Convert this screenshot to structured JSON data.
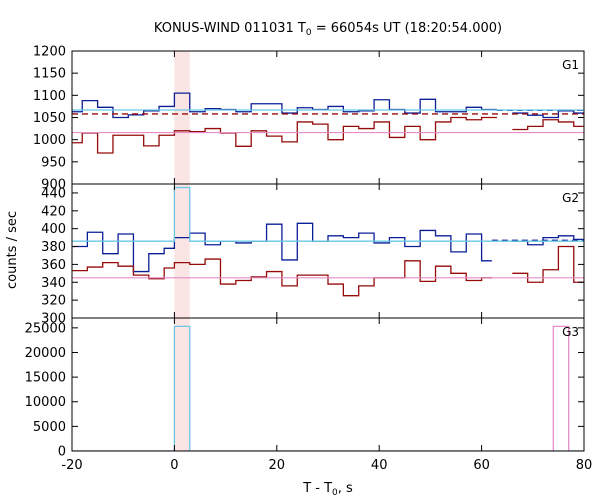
{
  "chart_data": {
    "type": "line",
    "title_prefix": "KONUS-WIND 011031 T",
    "title_sub": "0",
    "title_suffix": " = 66054s UT (18:20:54.000)",
    "xlabel_prefix": "T - T",
    "xlabel_sub": "0",
    "xlabel_suffix": ", s",
    "ylabel": "counts / sec",
    "xlim": [
      -20,
      80
    ],
    "xticks": [
      -20,
      0,
      20,
      40,
      60,
      80
    ],
    "highlight_interval": [
      0,
      3
    ],
    "colors": {
      "dark_blue": "#0a1e96",
      "dark_red": "#960a0a",
      "light_blue": "#6ac8e6",
      "pink": "#e68cc8",
      "highlight": "#fbe4e4"
    },
    "panels": [
      {
        "label": "G1",
        "ylim": [
          900,
          1200
        ],
        "yticks": [
          900,
          950,
          1000,
          1050,
          1100,
          1150,
          1200
        ],
        "series": [
          {
            "color": "dark_blue",
            "kind": "step",
            "x": [
              -20,
              -18,
              -15,
              -12,
              -9,
              -6,
              -3,
              0,
              3,
              6,
              9,
              12,
              15,
              18,
              21,
              24,
              27,
              30,
              33,
              36,
              39,
              42,
              45,
              48,
              51,
              54,
              57,
              60,
              63
            ],
            "y": [
              1063,
              1088,
              1073,
              1050,
              1056,
              1065,
              1075,
              1105,
              1063,
              1070,
              1068,
              1063,
              1081,
              1081,
              1060,
              1072,
              1068,
              1075,
              1063,
              1065,
              1090,
              1068,
              1060,
              1091,
              1063,
              1063,
              1073,
              1068,
              null
            ]
          },
          {
            "color": "dark_blue",
            "kind": "step",
            "x": [
              66,
              69,
              72,
              75,
              78,
              80
            ],
            "y": [
              1060,
              1055,
              1050,
              1065,
              1060,
              null
            ]
          },
          {
            "color": "dark_blue",
            "kind": "dashed",
            "x": [
              63,
              80
            ],
            "y": [
              1066,
              1066
            ]
          },
          {
            "color": "dark_red",
            "kind": "step",
            "x": [
              -20,
              -18,
              -15,
              -12,
              -9,
              -6,
              -3,
              0,
              3,
              6,
              9,
              12,
              15,
              18,
              21,
              24,
              27,
              30,
              33,
              36,
              39,
              42,
              45,
              48,
              51,
              54,
              57,
              60,
              63
            ],
            "y": [
              993,
              1015,
              970,
              1010,
              1010,
              986,
              1010,
              1020,
              1018,
              1025,
              1015,
              985,
              1020,
              1008,
              995,
              1040,
              1035,
              1000,
              1030,
              1025,
              1040,
              1005,
              1030,
              1000,
              1040,
              1050,
              1045,
              1050,
              null
            ]
          },
          {
            "color": "dark_red",
            "kind": "step",
            "x": [
              66,
              69,
              72,
              75,
              78,
              80
            ],
            "y": [
              1023,
              1030,
              1045,
              1040,
              1030,
              null
            ]
          },
          {
            "color": "dark_red",
            "kind": "dashed",
            "x": [
              -20,
              80
            ],
            "y": [
              1058,
              1058
            ]
          },
          {
            "color": "light_blue",
            "kind": "flat",
            "x": [
              -20,
              80
            ],
            "y": [
              1067,
              1067
            ]
          },
          {
            "color": "pink",
            "kind": "flat",
            "x": [
              -20,
              80
            ],
            "y": [
              1016,
              1016
            ]
          }
        ]
      },
      {
        "label": "G2",
        "ylim": [
          300,
          450
        ],
        "yticks": [
          300,
          320,
          340,
          360,
          380,
          400,
          420,
          440
        ],
        "series": [
          {
            "color": "dark_blue",
            "kind": "step",
            "x": [
              -20,
              -17,
              -14,
              -11,
              -8,
              -5,
              -2,
              0,
              3,
              6,
              9,
              12,
              15,
              18,
              21,
              24,
              27,
              30,
              33,
              36,
              39,
              42,
              45,
              48,
              51,
              54,
              57,
              60,
              62
            ],
            "y": [
              380,
              396,
              372,
              394,
              352,
              372,
              378,
              390,
              395,
              382,
              386,
              384,
              386,
              405,
              365,
              406,
              386,
              392,
              390,
              395,
              384,
              390,
              380,
              398,
              392,
              374,
              394,
              364,
              null
            ]
          },
          {
            "color": "dark_blue",
            "kind": "step",
            "x": [
              66,
              69,
              72,
              75,
              78,
              80
            ],
            "y": [
              386,
              382,
              390,
              392,
              388,
              null
            ]
          },
          {
            "color": "dark_blue",
            "kind": "dashed",
            "x": [
              62,
              80
            ],
            "y": [
              387,
              387
            ]
          },
          {
            "color": "dark_red",
            "kind": "step",
            "x": [
              -20,
              -17,
              -14,
              -11,
              -8,
              -5,
              -2,
              0,
              3,
              6,
              9,
              12,
              15,
              18,
              21,
              24,
              27,
              30,
              33,
              36,
              39,
              42,
              45,
              48,
              51,
              54,
              57,
              60,
              62
            ],
            "y": [
              353,
              357,
              362,
              358,
              348,
              344,
              356,
              362,
              360,
              366,
              338,
              342,
              346,
              352,
              336,
              348,
              348,
              338,
              325,
              336,
              345,
              345,
              364,
              341,
              358,
              350,
              342,
              345,
              null
            ]
          },
          {
            "color": "dark_red",
            "kind": "step",
            "x": [
              66,
              69,
              72,
              75,
              78,
              80
            ],
            "y": [
              350,
              340,
              354,
              380,
              340,
              null
            ]
          },
          {
            "color": "light_blue",
            "kind": "step",
            "x": [
              -20,
              0,
              0,
              3,
              3,
              80
            ],
            "y": [
              386,
              386,
              446,
              446,
              386,
              386
            ]
          },
          {
            "color": "pink",
            "kind": "flat",
            "x": [
              -20,
              80
            ],
            "y": [
              345,
              345
            ]
          }
        ]
      },
      {
        "label": "G3",
        "ylim": [
          0,
          27000
        ],
        "yticks": [
          0,
          5000,
          10000,
          15000,
          20000,
          25000
        ],
        "series": [
          {
            "color": "light_blue",
            "kind": "step",
            "x": [
              -20,
              0,
              0,
              3,
              3,
              80
            ],
            "y": [
              0,
              0,
              25300,
              25300,
              0,
              0
            ]
          },
          {
            "color": "pink",
            "kind": "step",
            "x": [
              -20,
              74,
              74,
              77,
              77,
              80
            ],
            "y": [
              0,
              0,
              25300,
              25300,
              0,
              0
            ]
          }
        ]
      }
    ]
  }
}
